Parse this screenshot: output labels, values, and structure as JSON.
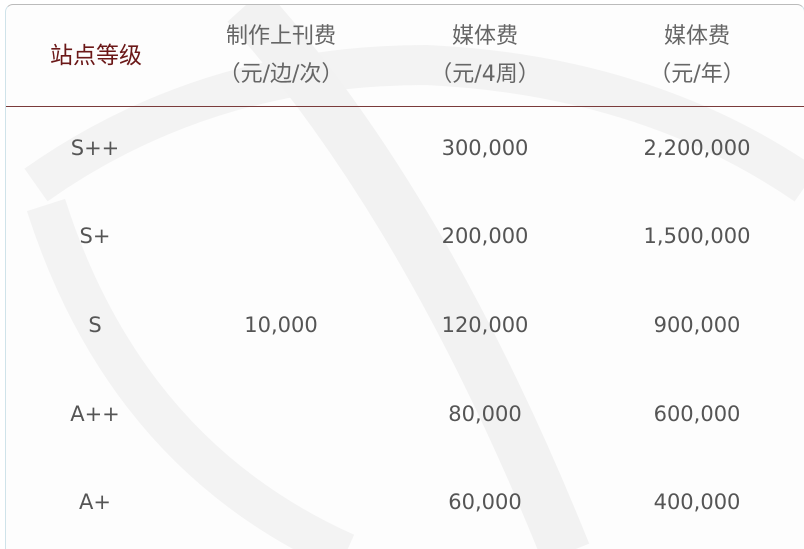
{
  "table": {
    "headers": [
      {
        "line1": "站点等级",
        "line2": ""
      },
      {
        "line1": "制作上刊费",
        "line2": "（元/边/次）"
      },
      {
        "line1": "媒体费",
        "line2": "（元/4周）"
      },
      {
        "line1": "媒体费",
        "line2": "（元/年）"
      }
    ],
    "production_fee_merged": "10,000",
    "rows": [
      {
        "grade": "S++",
        "fee_4weeks": "300,000",
        "fee_year": "2,200,000"
      },
      {
        "grade": "S+",
        "fee_4weeks": "200,000",
        "fee_year": "1,500,000"
      },
      {
        "grade": "S",
        "fee_4weeks": "120,000",
        "fee_year": "900,000"
      },
      {
        "grade": "A++",
        "fee_4weeks": "80,000",
        "fee_year": "600,000"
      },
      {
        "grade": "A+",
        "fee_4weeks": "60,000",
        "fee_year": "400,000"
      }
    ]
  },
  "colors": {
    "grade_text": "#6b1818",
    "header_rule": "#7a3b3b",
    "value_text": "#555555"
  }
}
